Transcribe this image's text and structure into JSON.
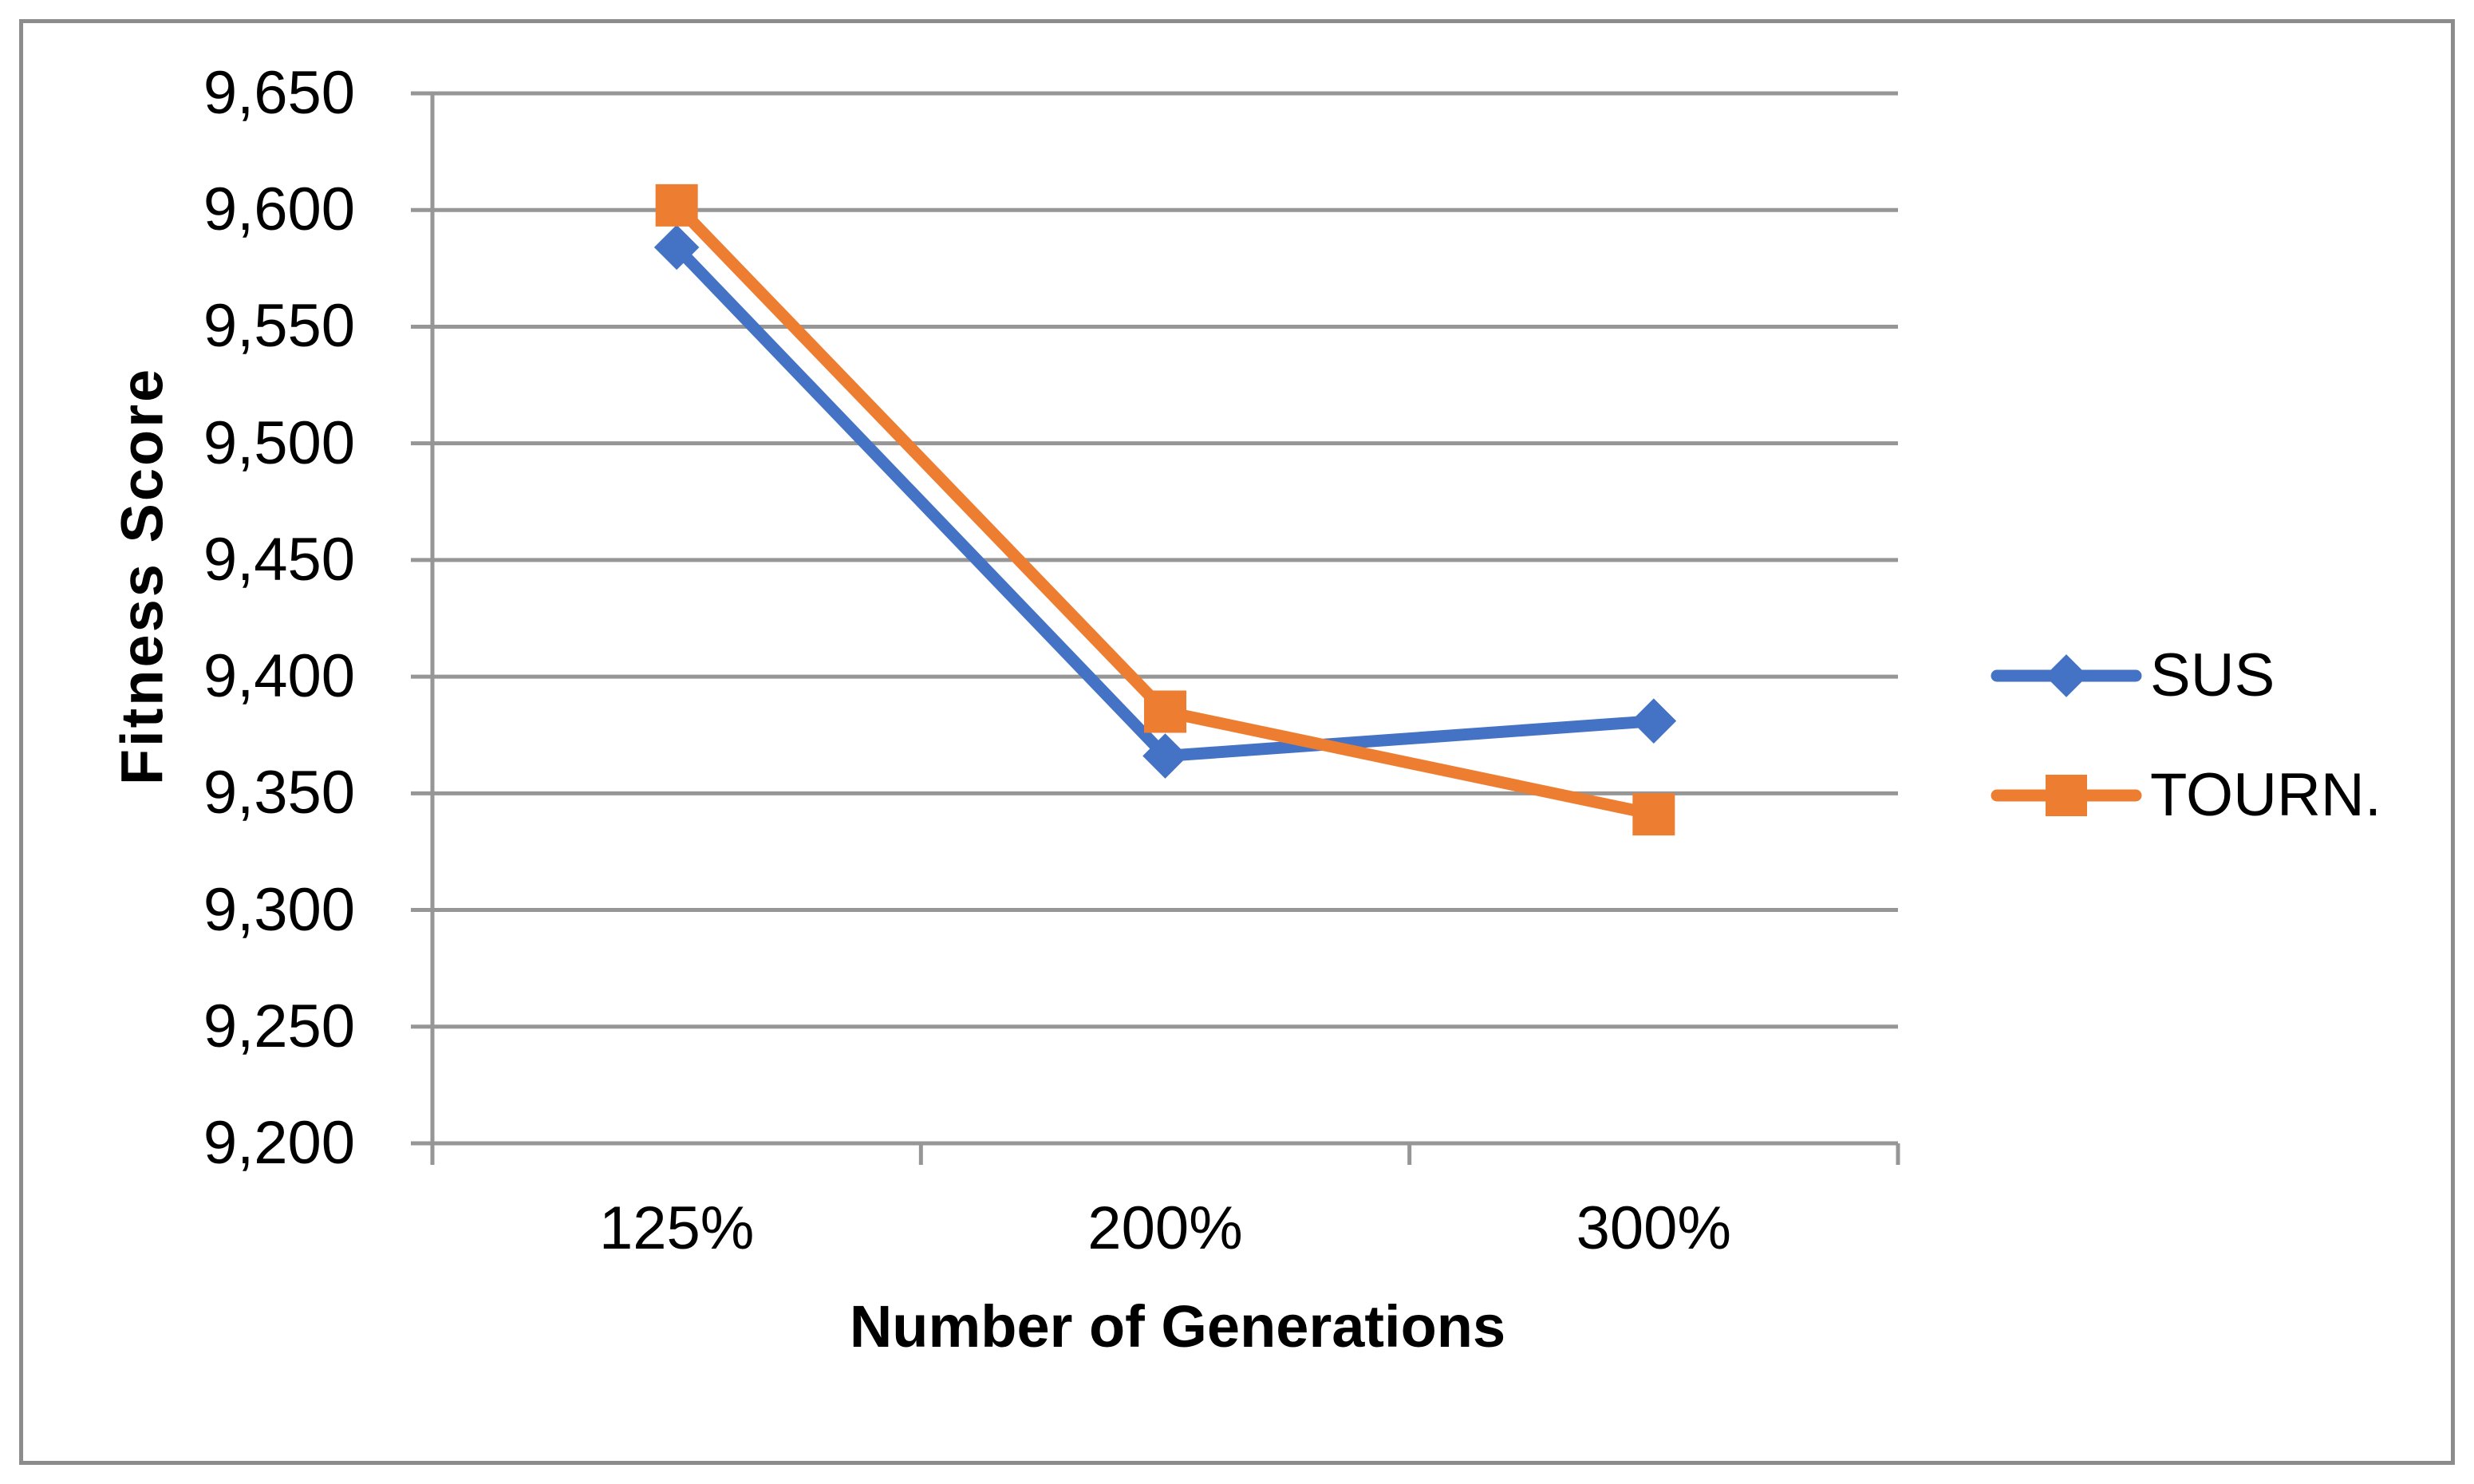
{
  "chart_data": {
    "type": "line",
    "title": "",
    "categories": [
      "125%",
      "200%",
      "300%"
    ],
    "series": [
      {
        "name": "SUS",
        "color": "#4472C4",
        "marker": "diamond",
        "values": [
          9584,
          9366,
          9381
        ]
      },
      {
        "name": "TOURN.",
        "color": "#ED7D31",
        "marker": "square",
        "values": [
          9602,
          9385,
          9341
        ]
      }
    ],
    "xlabel": "Number of Generations",
    "ylabel": "Fitness Score",
    "ylim": [
      9200,
      9650
    ],
    "ytick_step": 50,
    "ytick_labels": [
      "9,200",
      "9,250",
      "9,300",
      "9,350",
      "9,400",
      "9,450",
      "9,500",
      "9,550",
      "9,600",
      "9,650"
    ],
    "grid": true,
    "legend_position": "right"
  },
  "theme": {
    "background": "#FFFFFF",
    "gridline": "#969696",
    "axis": "#969696",
    "frame_border": "#8C8C8C",
    "text": "#000000"
  }
}
